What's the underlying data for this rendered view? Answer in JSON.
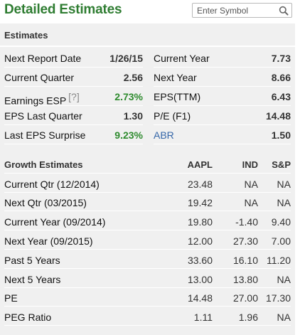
{
  "header": {
    "title": "Detailed Estimates",
    "search_placeholder": "Enter Symbol"
  },
  "estimates": {
    "section_title": "Estimates",
    "left": [
      {
        "label": "Next Report Date",
        "value": "1/26/15"
      },
      {
        "label": "Current Quarter",
        "value": "2.56"
      },
      {
        "label": "Earnings ESP",
        "hint": "[?]",
        "value": "2.73%",
        "value_color": "green"
      },
      {
        "label": "EPS Last Quarter",
        "value": "1.30"
      },
      {
        "label": "Last EPS Surprise",
        "value": "9.23%",
        "value_color": "green"
      }
    ],
    "right": [
      {
        "label": "Current Year",
        "value": "7.73"
      },
      {
        "label": "Next Year",
        "value": "8.66"
      },
      {
        "label": "EPS(TTM)",
        "value": "6.43"
      },
      {
        "label": "P/E (F1)",
        "value": "14.48"
      },
      {
        "label": "ABR",
        "value": "1.50",
        "link": true
      }
    ]
  },
  "growth": {
    "headers": [
      "Growth Estimates",
      "AAPL",
      "IND",
      "S&P"
    ],
    "rows": [
      [
        "Current Qtr (12/2014)",
        "23.48",
        "NA",
        "NA"
      ],
      [
        "Next Qtr (03/2015)",
        "19.42",
        "NA",
        "NA"
      ],
      [
        "Current Year (09/2014)",
        "19.80",
        "-1.40",
        "9.40"
      ],
      [
        "Next Year (09/2015)",
        "12.00",
        "27.30",
        "7.00"
      ],
      [
        "Past 5 Years",
        "33.60",
        "16.10",
        "11.20"
      ],
      [
        "Next 5 Years",
        "13.00",
        "13.80",
        "NA"
      ],
      [
        "PE",
        "14.48",
        "27.00",
        "17.30"
      ],
      [
        "PEG Ratio",
        "1.11",
        "1.96",
        "NA"
      ]
    ]
  },
  "colors": {
    "title_green": "#2f7d32",
    "value_green": "#2e8b2e",
    "link_blue": "#3466a8",
    "panel_bg": "#f0f0f0"
  }
}
